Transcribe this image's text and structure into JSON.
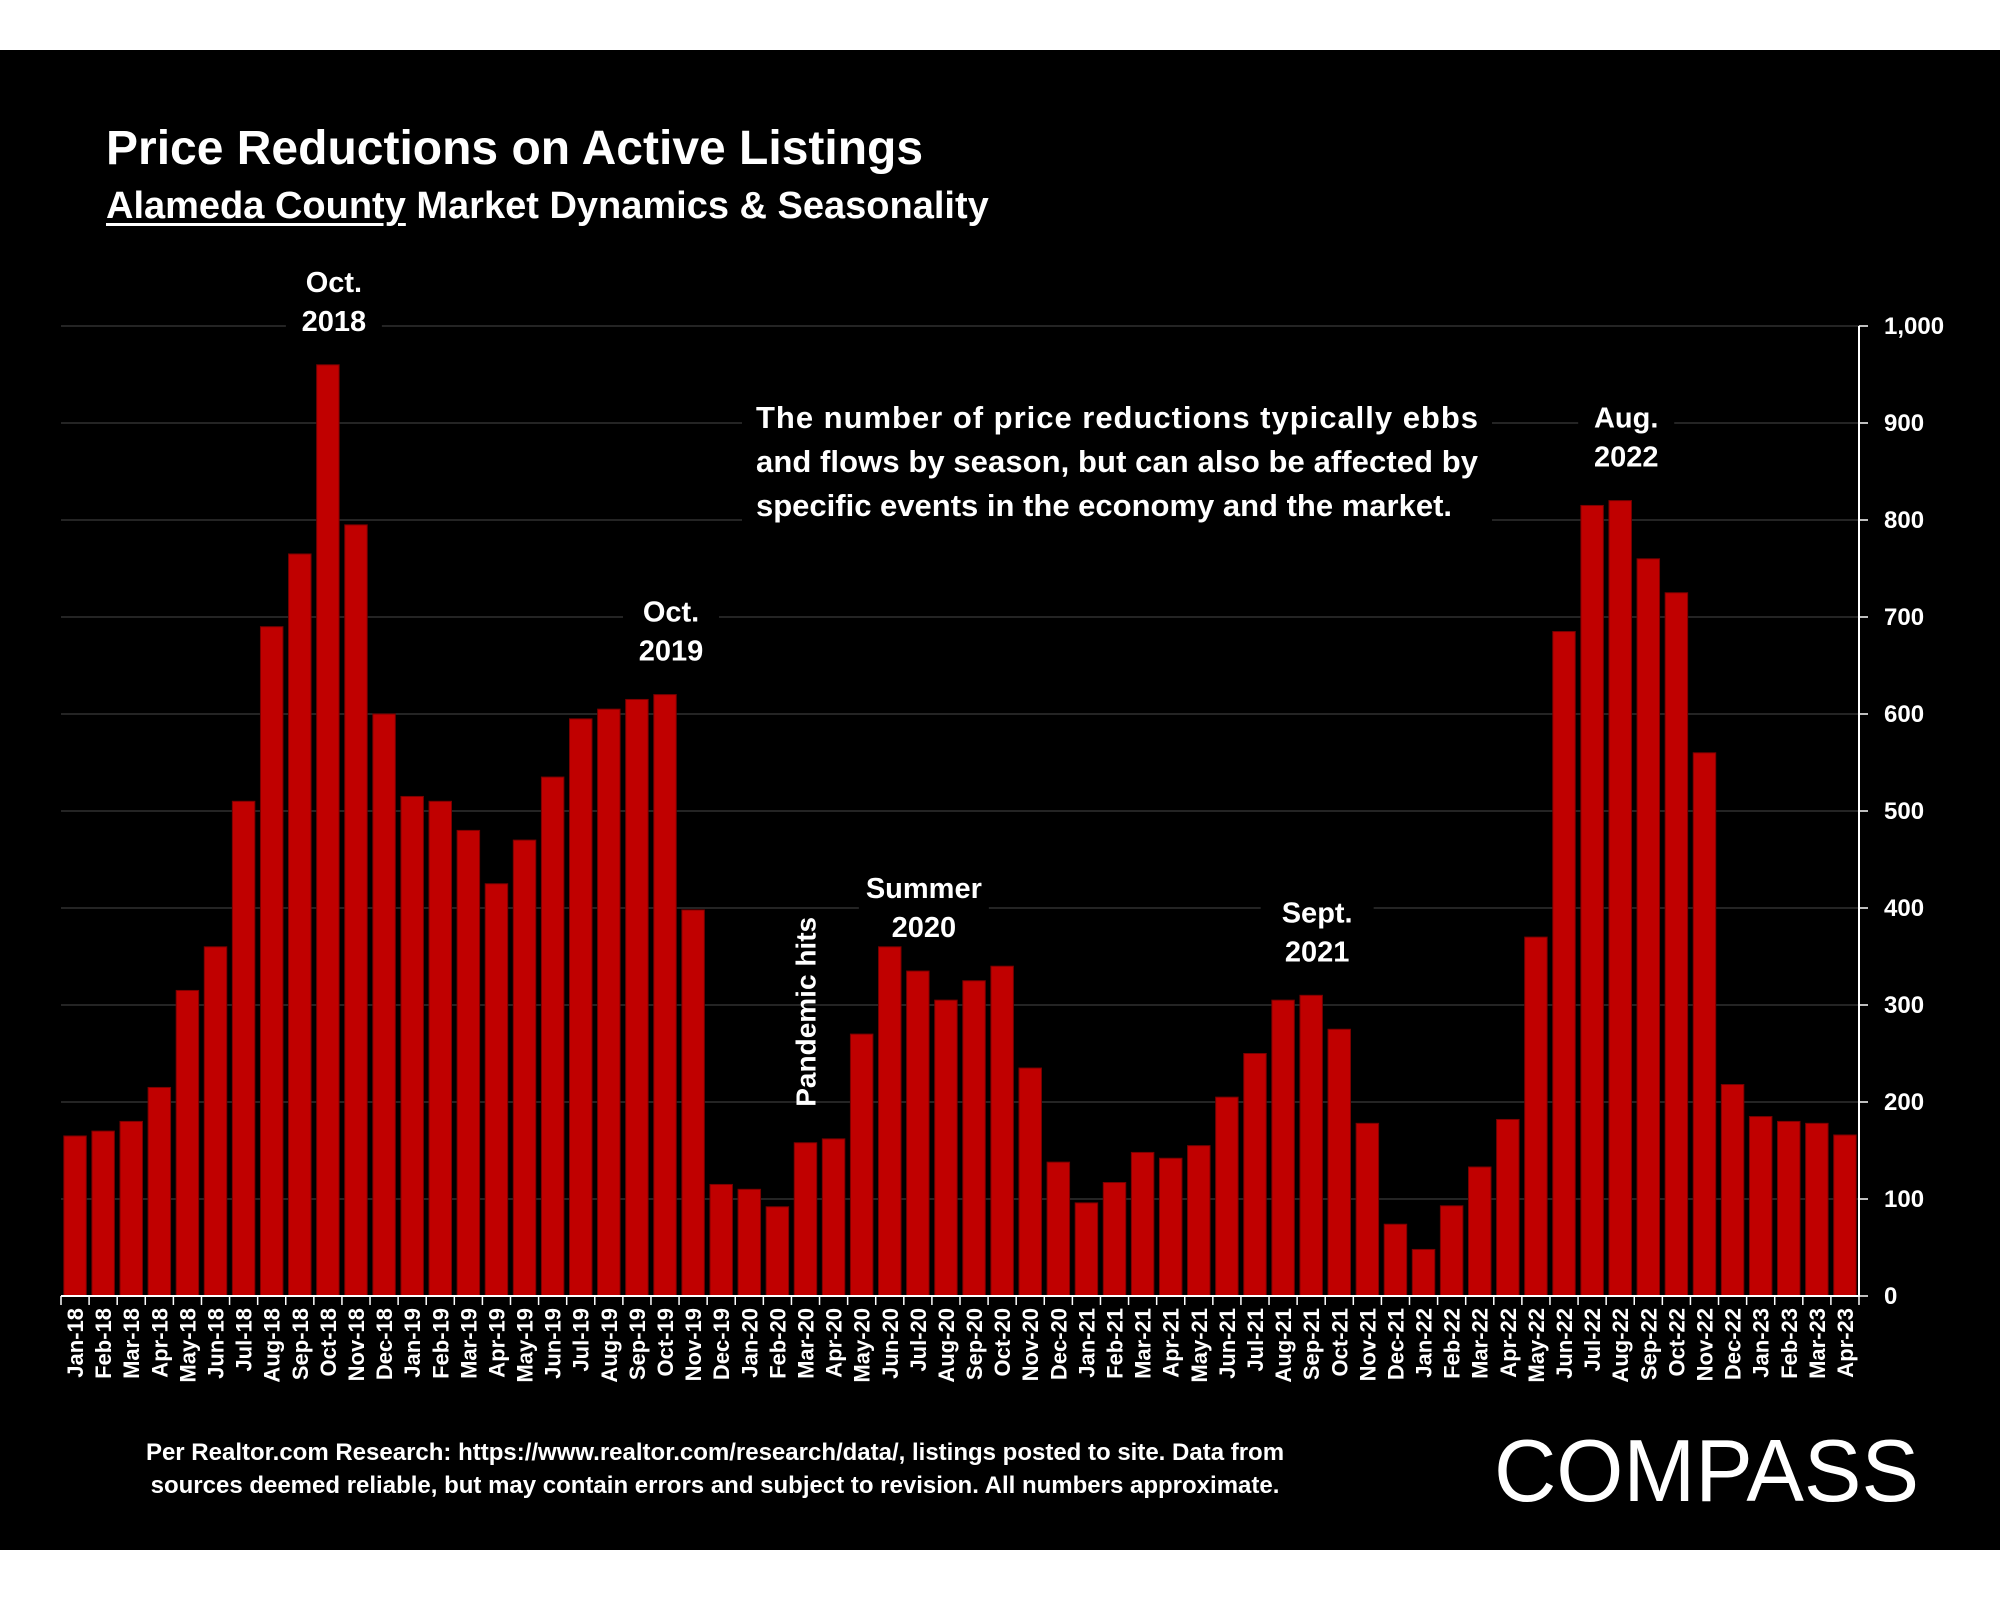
{
  "title": "Price Reductions on Active Listings",
  "subtitle": {
    "county": "Alameda County",
    "rest": " Market Dynamics & Seasonality"
  },
  "callout": [
    "The number of price reductions typically ebbs",
    "and flows by season, but can also be affected by",
    "specific events in the economy and the market."
  ],
  "source_note": [
    "Per Realtor.com Research:  https://www.realtor.com/research/data/, listings posted to site. Data from",
    "sources deemed reliable, but may contain errors and subject to revision. All numbers approximate."
  ],
  "logo_text": "COMPASS",
  "colors": {
    "background": "#000000",
    "bar": "#c00000",
    "bar_edge": "#7a0000",
    "text": "#ffffff",
    "grid": "#3a3a3a"
  },
  "chart_data": {
    "type": "bar",
    "categories": [
      "Jan-18",
      "Feb-18",
      "Mar-18",
      "Apr-18",
      "May-18",
      "Jun-18",
      "Jul-18",
      "Aug-18",
      "Sep-18",
      "Oct-18",
      "Nov-18",
      "Dec-18",
      "Jan-19",
      "Feb-19",
      "Mar-19",
      "Apr-19",
      "May-19",
      "Jun-19",
      "Jul-19",
      "Aug-19",
      "Sep-19",
      "Oct-19",
      "Nov-19",
      "Dec-19",
      "Jan-20",
      "Feb-20",
      "Mar-20",
      "Apr-20",
      "May-20",
      "Jun-20",
      "Jul-20",
      "Aug-20",
      "Sep-20",
      "Oct-20",
      "Nov-20",
      "Dec-20",
      "Jan-21",
      "Feb-21",
      "Mar-21",
      "Apr-21",
      "May-21",
      "Jun-21",
      "Jul-21",
      "Aug-21",
      "Sep-21",
      "Oct-21",
      "Nov-21",
      "Dec-21",
      "Jan-22",
      "Feb-22",
      "Mar-22",
      "Apr-22",
      "May-22",
      "Jun-22",
      "Jul-22",
      "Aug-22",
      "Sep-22",
      "Oct-22",
      "Nov-22",
      "Dec-22",
      "Jan-23",
      "Feb-23",
      "Mar-23",
      "Apr-23"
    ],
    "values": [
      165,
      170,
      180,
      215,
      315,
      360,
      510,
      690,
      765,
      960,
      795,
      600,
      515,
      510,
      480,
      425,
      470,
      535,
      595,
      605,
      615,
      620,
      398,
      115,
      110,
      92,
      158,
      162,
      270,
      360,
      335,
      305,
      325,
      340,
      235,
      138,
      96,
      117,
      148,
      142,
      155,
      205,
      250,
      305,
      310,
      275,
      178,
      74,
      48,
      93,
      133,
      182,
      370,
      685,
      815,
      820,
      760,
      725,
      560,
      218,
      185,
      180,
      178,
      166
    ],
    "ylim": [
      0,
      1000
    ],
    "yticks": [
      0,
      100,
      200,
      300,
      400,
      500,
      600,
      700,
      800,
      900,
      1000
    ],
    "y_axis_side": "right",
    "grid": true,
    "legend": "none",
    "annotations": [
      {
        "category": "Oct-18",
        "lines": [
          "Oct.",
          "2018"
        ]
      },
      {
        "category": "Oct-19",
        "lines": [
          "Oct.",
          "2019"
        ]
      },
      {
        "category": "Mar-20",
        "lines": [
          "Pandemic hits"
        ],
        "rotated": true
      },
      {
        "category": "Jul-20",
        "lines": [
          "Summer",
          "2020"
        ]
      },
      {
        "category": "Sep-21",
        "lines": [
          "Sept.",
          "2021"
        ]
      },
      {
        "category": "Aug-22",
        "lines": [
          "Aug.",
          "2022"
        ]
      }
    ]
  }
}
